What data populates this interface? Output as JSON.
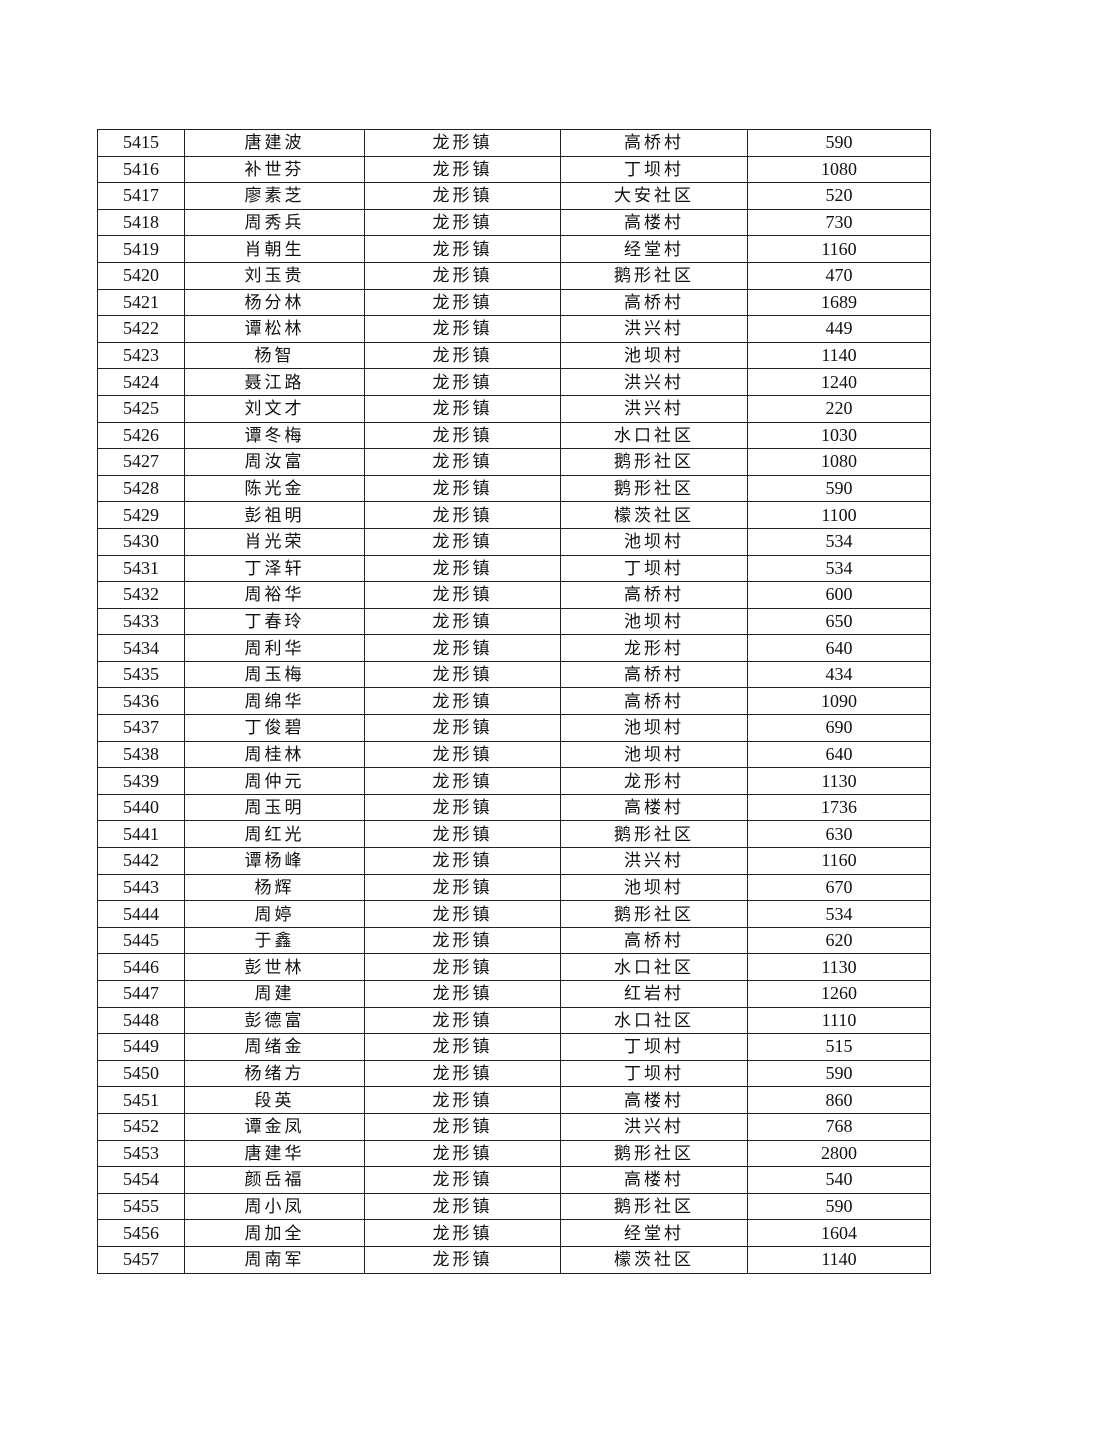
{
  "rows": [
    [
      "5415",
      "唐建波",
      "龙形镇",
      "高桥村",
      "590"
    ],
    [
      "5416",
      "补世芬",
      "龙形镇",
      "丁坝村",
      "1080"
    ],
    [
      "5417",
      "廖素芝",
      "龙形镇",
      "大安社区",
      "520"
    ],
    [
      "5418",
      "周秀兵",
      "龙形镇",
      "高楼村",
      "730"
    ],
    [
      "5419",
      "肖朝生",
      "龙形镇",
      "经堂村",
      "1160"
    ],
    [
      "5420",
      "刘玉贵",
      "龙形镇",
      "鹅形社区",
      "470"
    ],
    [
      "5421",
      "杨分林",
      "龙形镇",
      "高桥村",
      "1689"
    ],
    [
      "5422",
      "谭松林",
      "龙形镇",
      "洪兴村",
      "449"
    ],
    [
      "5423",
      "杨智",
      "龙形镇",
      "池坝村",
      "1140"
    ],
    [
      "5424",
      "聂江路",
      "龙形镇",
      "洪兴村",
      "1240"
    ],
    [
      "5425",
      "刘文才",
      "龙形镇",
      "洪兴村",
      "220"
    ],
    [
      "5426",
      "谭冬梅",
      "龙形镇",
      "水口社区",
      "1030"
    ],
    [
      "5427",
      "周汝富",
      "龙形镇",
      "鹅形社区",
      "1080"
    ],
    [
      "5428",
      "陈光金",
      "龙形镇",
      "鹅形社区",
      "590"
    ],
    [
      "5429",
      "彭祖明",
      "龙形镇",
      "檬茨社区",
      "1100"
    ],
    [
      "5430",
      "肖光荣",
      "龙形镇",
      "池坝村",
      "534"
    ],
    [
      "5431",
      "丁泽轩",
      "龙形镇",
      "丁坝村",
      "534"
    ],
    [
      "5432",
      "周裕华",
      "龙形镇",
      "高桥村",
      "600"
    ],
    [
      "5433",
      "丁春玲",
      "龙形镇",
      "池坝村",
      "650"
    ],
    [
      "5434",
      "周利华",
      "龙形镇",
      "龙形村",
      "640"
    ],
    [
      "5435",
      "周玉梅",
      "龙形镇",
      "高桥村",
      "434"
    ],
    [
      "5436",
      "周绵华",
      "龙形镇",
      "高桥村",
      "1090"
    ],
    [
      "5437",
      "丁俊碧",
      "龙形镇",
      "池坝村",
      "690"
    ],
    [
      "5438",
      "周桂林",
      "龙形镇",
      "池坝村",
      "640"
    ],
    [
      "5439",
      "周仲元",
      "龙形镇",
      "龙形村",
      "1130"
    ],
    [
      "5440",
      "周玉明",
      "龙形镇",
      "高楼村",
      "1736"
    ],
    [
      "5441",
      "周红光",
      "龙形镇",
      "鹅形社区",
      "630"
    ],
    [
      "5442",
      "谭杨峰",
      "龙形镇",
      "洪兴村",
      "1160"
    ],
    [
      "5443",
      "杨辉",
      "龙形镇",
      "池坝村",
      "670"
    ],
    [
      "5444",
      "周婷",
      "龙形镇",
      "鹅形社区",
      "534"
    ],
    [
      "5445",
      "于鑫",
      "龙形镇",
      "高桥村",
      "620"
    ],
    [
      "5446",
      "彭世林",
      "龙形镇",
      "水口社区",
      "1130"
    ],
    [
      "5447",
      "周建",
      "龙形镇",
      "红岩村",
      "1260"
    ],
    [
      "5448",
      "彭德富",
      "龙形镇",
      "水口社区",
      "1110"
    ],
    [
      "5449",
      "周绪金",
      "龙形镇",
      "丁坝村",
      "515"
    ],
    [
      "5450",
      "杨绪方",
      "龙形镇",
      "丁坝村",
      "590"
    ],
    [
      "5451",
      "段英",
      "龙形镇",
      "高楼村",
      "860"
    ],
    [
      "5452",
      "谭金凤",
      "龙形镇",
      "洪兴村",
      "768"
    ],
    [
      "5453",
      "唐建华",
      "龙形镇",
      "鹅形社区",
      "2800"
    ],
    [
      "5454",
      "颜岳福",
      "龙形镇",
      "高楼村",
      "540"
    ],
    [
      "5455",
      "周小凤",
      "龙形镇",
      "鹅形社区",
      "590"
    ],
    [
      "5456",
      "周加全",
      "龙形镇",
      "经堂村",
      "1604"
    ],
    [
      "5457",
      "周南军",
      "龙形镇",
      "檬茨社区",
      "1140"
    ]
  ]
}
